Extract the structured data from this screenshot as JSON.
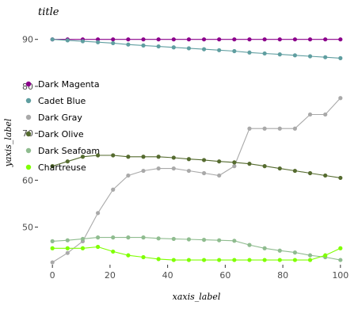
{
  "chart_data": {
    "type": "line",
    "title": "title",
    "xlabel": "xaxis_label",
    "ylabel": "yaxis_label",
    "xlim": [
      -5,
      105
    ],
    "ylim": [
      42,
      94
    ],
    "xticks": [
      0,
      20,
      40,
      60,
      80,
      100
    ],
    "yticks": [
      50,
      60,
      70,
      80,
      90
    ],
    "grid": false,
    "legend_position": "left",
    "x": [
      0,
      5.26,
      10.53,
      15.79,
      21.05,
      26.32,
      31.58,
      36.84,
      42.11,
      47.37,
      52.63,
      57.89,
      63.16,
      68.42,
      73.68,
      78.95,
      84.21,
      89.47,
      94.74,
      100
    ],
    "series": [
      {
        "name": "Dark Magenta",
        "color": "#8b008b",
        "values": [
          90,
          90,
          90,
          90,
          90,
          90,
          90,
          90,
          90,
          90,
          90,
          90,
          90,
          90,
          90,
          90,
          90,
          90,
          90,
          90
        ]
      },
      {
        "name": "Cadet Blue",
        "color": "#5f9ea0",
        "values": [
          90,
          89.8,
          89.6,
          89.4,
          89.2,
          88.9,
          88.7,
          88.5,
          88.3,
          88.1,
          87.9,
          87.7,
          87.5,
          87.2,
          87,
          86.8,
          86.6,
          86.4,
          86.2,
          86
        ]
      },
      {
        "name": "Dark Gray",
        "color": "#a9a9a9",
        "values": [
          42.5,
          44.5,
          47,
          53,
          58,
          61,
          62,
          62.5,
          62.5,
          62,
          61.5,
          61,
          63,
          71,
          71,
          71,
          71,
          74,
          74,
          77.5
        ]
      },
      {
        "name": "Dark Olive",
        "color": "#556b2f",
        "values": [
          63,
          64,
          65,
          65.3,
          65.3,
          65,
          65,
          65,
          64.8,
          64.5,
          64.3,
          64,
          63.8,
          63.5,
          63,
          62.5,
          62,
          61.5,
          61,
          60.5
        ]
      },
      {
        "name": "Dark Seafoam",
        "color": "#8fbc8f",
        "values": [
          47,
          47.2,
          47.5,
          47.8,
          47.8,
          47.8,
          47.8,
          47.6,
          47.5,
          47.4,
          47.3,
          47.2,
          47.1,
          46.2,
          45.5,
          45,
          44.6,
          44,
          43.6,
          43
        ]
      },
      {
        "name": "Chartreuse",
        "color": "#7fff00",
        "values": [
          45.5,
          45.5,
          45.5,
          45.8,
          44.8,
          44,
          43.6,
          43.2,
          43,
          43,
          43,
          43,
          43,
          43,
          43,
          43,
          43,
          43,
          44,
          45.5
        ]
      }
    ]
  }
}
